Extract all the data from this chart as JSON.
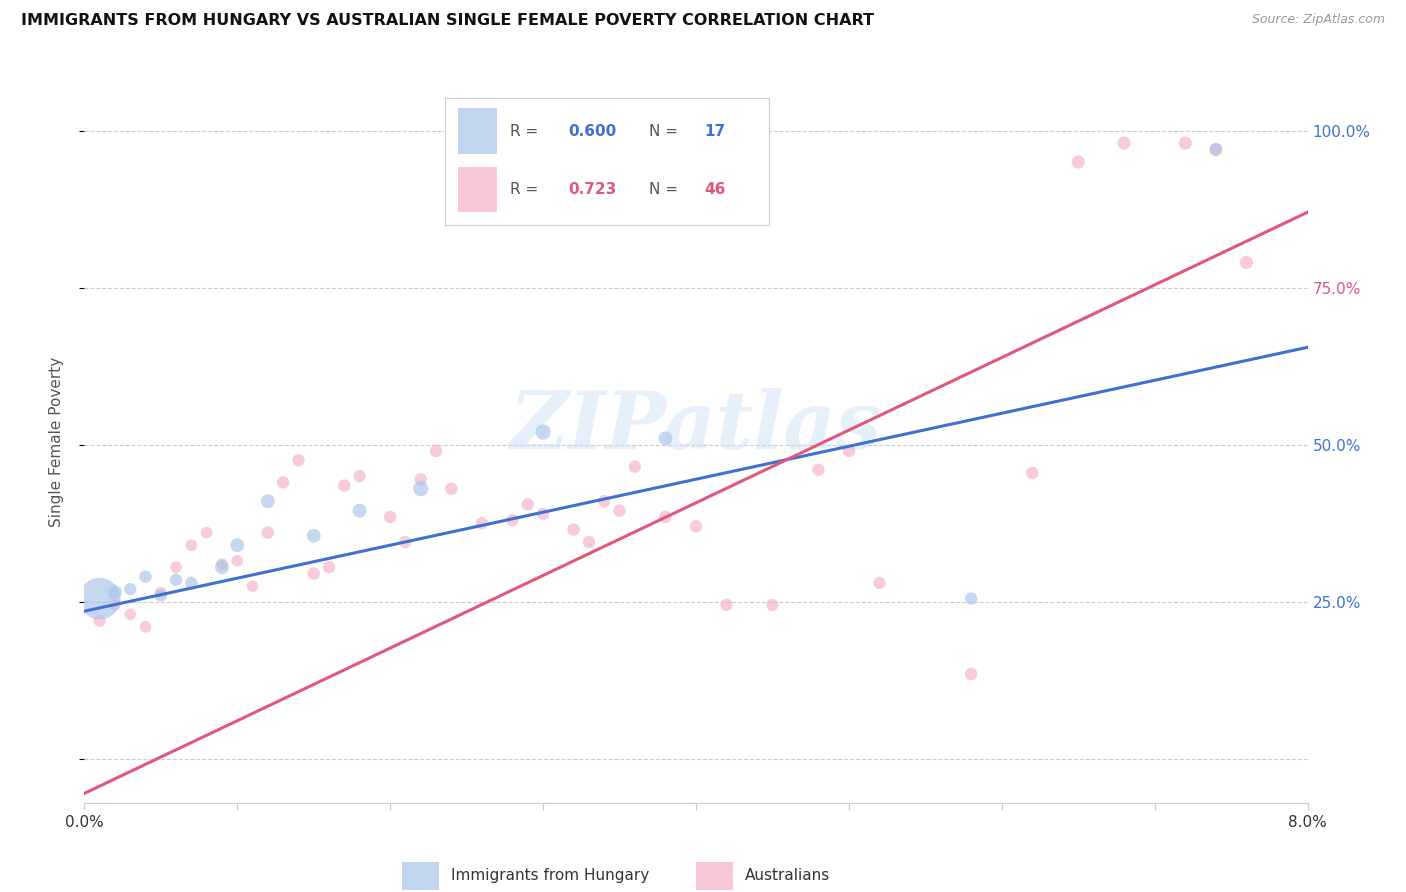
{
  "title": "IMMIGRANTS FROM HUNGARY VS AUSTRALIAN SINGLE FEMALE POVERTY CORRELATION CHART",
  "source": "Source: ZipAtlas.com",
  "ylabel": "Single Female Poverty",
  "yticks": [
    0.0,
    0.25,
    0.5,
    0.75,
    1.0
  ],
  "ytick_labels": [
    "",
    "25.0%",
    "50.0%",
    "75.0%",
    "100.0%"
  ],
  "xlim": [
    0.0,
    0.08
  ],
  "ylim": [
    -0.07,
    1.08
  ],
  "legend_blue_r": "0.600",
  "legend_blue_n": "17",
  "legend_pink_r": "0.723",
  "legend_pink_n": "46",
  "legend_label_blue": "Immigrants from Hungary",
  "legend_label_pink": "Australians",
  "watermark": "ZIPatlas",
  "blue_color": "#a8c4e8",
  "pink_color": "#f4afc8",
  "blue_line_color": "#4070d0",
  "pink_line_color": "#e05878",
  "blue_line_x0": 0.0,
  "blue_line_y0": 0.235,
  "blue_line_x1": 0.08,
  "blue_line_y1": 0.655,
  "pink_line_x0": 0.0,
  "pink_line_y0": -0.055,
  "pink_line_x1": 0.08,
  "pink_line_y1": 0.87,
  "blue_points_x": [
    0.001,
    0.002,
    0.003,
    0.004,
    0.005,
    0.006,
    0.007,
    0.009,
    0.01,
    0.012,
    0.015,
    0.018,
    0.022,
    0.03,
    0.038,
    0.058,
    0.074
  ],
  "blue_points_y": [
    0.255,
    0.265,
    0.27,
    0.29,
    0.26,
    0.285,
    0.28,
    0.305,
    0.34,
    0.41,
    0.355,
    0.395,
    0.43,
    0.52,
    0.51,
    0.255,
    0.97
  ],
  "blue_sizes": [
    900,
    100,
    80,
    80,
    80,
    80,
    80,
    100,
    100,
    100,
    100,
    100,
    120,
    120,
    100,
    80,
    80
  ],
  "pink_points_x": [
    0.001,
    0.002,
    0.003,
    0.004,
    0.005,
    0.006,
    0.007,
    0.008,
    0.009,
    0.01,
    0.011,
    0.012,
    0.013,
    0.014,
    0.015,
    0.016,
    0.017,
    0.018,
    0.02,
    0.021,
    0.022,
    0.023,
    0.024,
    0.026,
    0.028,
    0.029,
    0.03,
    0.032,
    0.033,
    0.034,
    0.035,
    0.036,
    0.038,
    0.04,
    0.042,
    0.045,
    0.048,
    0.05,
    0.052,
    0.058,
    0.062,
    0.065,
    0.068,
    0.072,
    0.074,
    0.076
  ],
  "pink_points_y": [
    0.22,
    0.245,
    0.23,
    0.21,
    0.265,
    0.305,
    0.34,
    0.36,
    0.31,
    0.315,
    0.275,
    0.36,
    0.44,
    0.475,
    0.295,
    0.305,
    0.435,
    0.45,
    0.385,
    0.345,
    0.445,
    0.49,
    0.43,
    0.375,
    0.38,
    0.405,
    0.39,
    0.365,
    0.345,
    0.41,
    0.395,
    0.465,
    0.385,
    0.37,
    0.245,
    0.245,
    0.46,
    0.49,
    0.28,
    0.135,
    0.455,
    0.95,
    0.98,
    0.98,
    0.97,
    0.79
  ],
  "pink_sizes": [
    80,
    70,
    70,
    70,
    70,
    70,
    70,
    70,
    70,
    70,
    70,
    80,
    80,
    80,
    80,
    80,
    80,
    80,
    80,
    80,
    80,
    80,
    80,
    80,
    80,
    80,
    80,
    80,
    80,
    80,
    80,
    80,
    80,
    80,
    80,
    80,
    80,
    80,
    80,
    80,
    80,
    90,
    90,
    90,
    90,
    90
  ]
}
